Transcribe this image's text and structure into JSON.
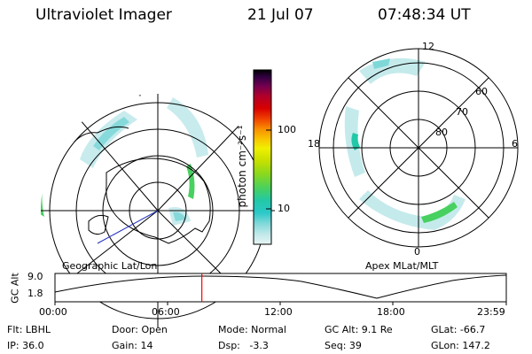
{
  "header": {
    "title": "Ultraviolet Imager",
    "date": "21 Jul 07",
    "time": "07:48:34 UT"
  },
  "colorbar": {
    "unit_label": "photon cm⁻²s⁻¹",
    "tick_labels": [
      "100",
      "10"
    ],
    "scale": "log",
    "colors": [
      "#e8f4f4",
      "#bfe8ea",
      "#7fd8d8",
      "#2cc8c8",
      "#22c8a8",
      "#48d060",
      "#88d820",
      "#c8e000",
      "#f0f000",
      "#f8c800",
      "#f89000",
      "#f04000",
      "#d80000",
      "#b0002c",
      "#700050",
      "#300040",
      "#000000"
    ]
  },
  "geo_map": {
    "label": "Geographic Lat/Lon",
    "outline_color": "#000000",
    "aurora_color": "#2cc8c8"
  },
  "apex_map": {
    "label": "Apex MLat/MLT",
    "lat_labels": [
      "60",
      "70",
      "80"
    ],
    "mlt_labels": [
      "12",
      "18",
      "6",
      "0"
    ]
  },
  "altitude_plot": {
    "ylabel": "GC Alt",
    "y_ticks": [
      "9.0",
      "1.8"
    ],
    "x_ticks": [
      "00:00",
      "06:00",
      "12:00",
      "18:00",
      "23:59"
    ],
    "current_time_marker_color": "#ff0000",
    "current_time_hours": 7.81
  },
  "info": {
    "flt": "Flt: LBHL",
    "ip": "IP: 36.0",
    "door": "Door: Open",
    "gain": "Gain: 14",
    "mode": "Mode: Normal",
    "dsp": "Dsp:   -3.3",
    "gcalt": "GC Alt: 9.1 Re",
    "seq": "Seq: 39",
    "glat": "GLat: -66.7",
    "glon": "GLon: 147.2"
  }
}
